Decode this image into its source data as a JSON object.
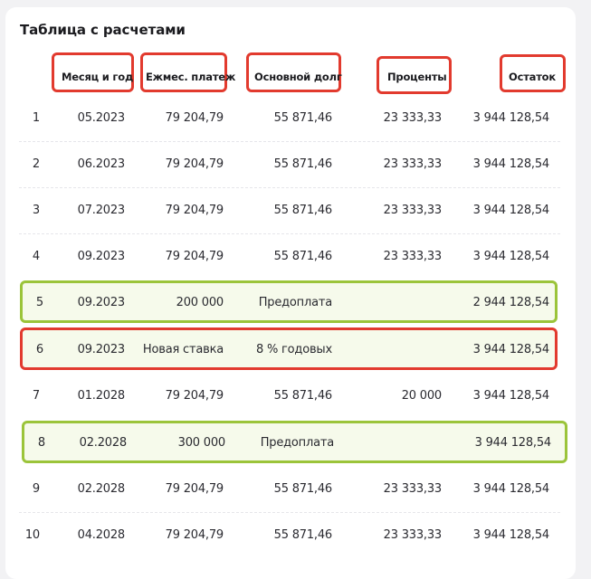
{
  "title": "Таблица с расчетами",
  "headers": {
    "month": "Месяц и год",
    "payment": "Ежмес. платеж",
    "principal": "Основной долг",
    "interest": "Проценты",
    "balance": "Остаток"
  },
  "rows": [
    {
      "n": "1",
      "date": "05.2023",
      "payment": "79 204,79",
      "principal": "55 871,46",
      "interest": "23 333,33",
      "balance": "3 944 128,54"
    },
    {
      "n": "2",
      "date": "06.2023",
      "payment": "79 204,79",
      "principal": "55 871,46",
      "interest": "23 333,33",
      "balance": "3 944 128,54"
    },
    {
      "n": "3",
      "date": "07.2023",
      "payment": "79 204,79",
      "principal": "55 871,46",
      "interest": "23 333,33",
      "balance": "3 944 128,54"
    },
    {
      "n": "4",
      "date": "09.2023",
      "payment": "79 204,79",
      "principal": "55 871,46",
      "interest": "23 333,33",
      "balance": "3 944 128,54"
    },
    {
      "n": "5",
      "date": "09.2023",
      "payment": "200 000",
      "principal": "Предоплата",
      "interest": "",
      "balance": "2 944 128,54"
    },
    {
      "n": "6",
      "date": "09.2023",
      "payment": "Новая ставка",
      "principal": "8 % годовых",
      "interest": "",
      "balance": "3 944 128,54"
    },
    {
      "n": "7",
      "date": "01.2028",
      "payment": "79 204,79",
      "principal": "55 871,46",
      "interest": "20 000",
      "balance": "3 944 128,54"
    },
    {
      "n": "8",
      "date": "02.2028",
      "payment": "300 000",
      "principal": "Предоплата",
      "interest": "",
      "balance": "3 944 128,54"
    },
    {
      "n": "9",
      "date": "02.2028",
      "payment": "79 204,79",
      "principal": "55 871,46",
      "interest": "23 333,33",
      "balance": "3 944 128,54"
    },
    {
      "n": "10",
      "date": "04.2028",
      "payment": "79 204,79",
      "principal": "55 871,46",
      "interest": "23 333,33",
      "balance": "3 944 128,54"
    }
  ],
  "colors": {
    "annotation_red": "#e23a2e",
    "annotation_green": "#9bc43a",
    "highlight_bg": "#f6faeb"
  }
}
